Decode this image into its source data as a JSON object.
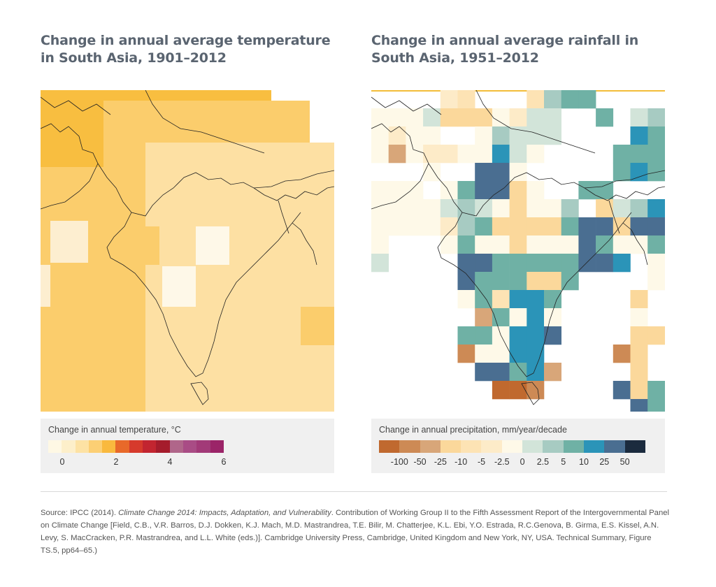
{
  "left_panel": {
    "title_line1": "Change in annual average temperature",
    "title_line2": "in South Asia, 1901–2012",
    "legend_title": "Change in annual temperature, °C",
    "legend_colors": [
      "#fef8e4",
      "#fdefca",
      "#fde2a4",
      "#fccf74",
      "#f9b93e",
      "#e8692a",
      "#d63a2c",
      "#c22530",
      "#a51c2c",
      "#b0668a",
      "#a94c85",
      "#a23a78",
      "#9b2468"
    ],
    "legend_ticks": [
      "0",
      "2",
      "4",
      "6"
    ]
  },
  "right_panel": {
    "title_line1": "Change in annual average rainfall in",
    "title_line2": "South Asia, 1951–2012",
    "legend_title": "Change in annual precipitation, mm/year/decade",
    "legend_colors": [
      "#c0692f",
      "#cd8a55",
      "#d8a679",
      "#fbd89b",
      "#fde3b4",
      "#fdebc8",
      "#fef9e8",
      "#d2e4d9",
      "#a7cbc2",
      "#6fb1a5",
      "#2b94b8",
      "#4a6e91",
      "#1b2b3e"
    ],
    "legend_ticks": [
      "-100",
      "-50",
      "-25",
      "-10",
      "-5",
      "-2.5",
      "0",
      "2.5",
      "5",
      "10",
      "25",
      "50"
    ]
  },
  "colors": {
    "temp_darker": "#f8be40",
    "temp_dark": "#fbcd6c",
    "temp_medium": "#fde0a3",
    "temp_light": "#fdeed0",
    "temp_lightest": "#fef8e8",
    "title": "#5a6470"
  },
  "source": {
    "prefix": "Source: IPCC (2014). ",
    "italic": "Climate Change 2014: Impacts, Adaptation, and Vulnerability",
    "rest": ". Contribution of Working Group II to the Fifth Assessment Report of the Intergovernmental Panel on Climate Change [Field, C.B., V.R. Barros, D.J. Dokken, K.J. Mach, M.D. Mastrandrea, T.E. Bilir, M. Chatterjee, K.L. Ebi, Y.O. Estrada, R.C.Genova, B. Girma, E.S. Kissel, A.N. Levy, S. MacCracken, P.R. Mastrandrea, and L.L. White (eds.)]. Cambridge University Press, Cambridge, United Kingdom and New York, NY, USA. Technical Summary, Figure TS.5, pp64–65.)"
  }
}
